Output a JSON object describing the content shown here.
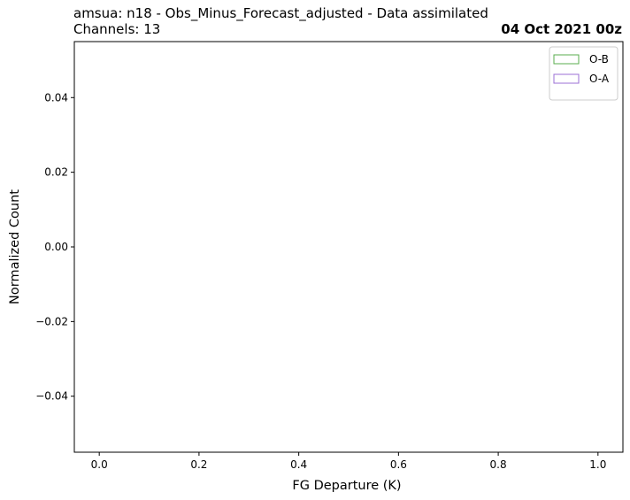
{
  "header": {
    "title": "amsua: n18 - Obs_Minus_Forecast_adjusted - Data assimilated",
    "subtitle": "Channels: 13",
    "date": "04 Oct 2021 00z"
  },
  "chart_data": {
    "type": "histogram",
    "xlabel": "FG Departure (K)",
    "ylabel": "Normalized Count",
    "xlim": [
      -0.05,
      1.05
    ],
    "ylim": [
      -0.055,
      0.055
    ],
    "xticks": [
      0.0,
      0.2,
      0.4,
      0.6,
      0.8,
      1.0
    ],
    "xtick_labels": [
      "0.0",
      "0.2",
      "0.4",
      "0.6",
      "0.8",
      "1.0"
    ],
    "yticks": [
      0.04,
      0.02,
      0.0,
      -0.02,
      -0.04
    ],
    "ytick_labels": [
      "0.04",
      "0.02",
      "0.00",
      "−0.02",
      "−0.04"
    ],
    "grid": false,
    "legend_position": "top-right",
    "series": [
      {
        "name": "O-B",
        "color": "#5aac4e",
        "values": []
      },
      {
        "name": "O-A",
        "color": "#9b6fd6",
        "values": []
      }
    ]
  }
}
